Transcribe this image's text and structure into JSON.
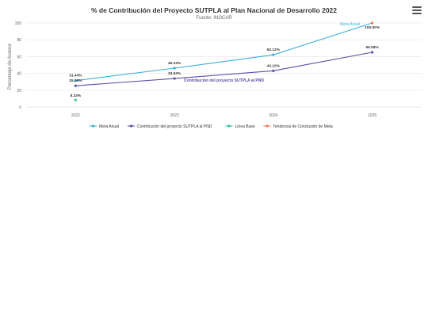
{
  "chart_data": {
    "type": "line",
    "title": "% de Contribución del Proyecto SUTPLA al Plan Nacional de Desarrollo 2022",
    "subtitle": "Fuente: INOCAR",
    "ylabel": "Porcentaje de Avance",
    "xlabel": "",
    "categories": [
      "2022",
      "2023",
      "2024",
      "2025"
    ],
    "ylim": [
      0,
      100
    ],
    "yticks": [
      0,
      20,
      40,
      60,
      80,
      100
    ],
    "grid": true,
    "legend_position": "bottom",
    "series": [
      {
        "name": "Meta Anual",
        "color": "#3aafd9",
        "values": [
          31.44,
          46.22,
          62.12,
          100
        ],
        "labels": [
          "31.44%",
          "46.22%",
          "62.12%",
          "100.00%"
        ],
        "series_label": "Meta Anual"
      },
      {
        "name": "Contribución del proyecto SUTPLA al PND",
        "color": "#5b4ea6",
        "values": [
          25.28,
          33.92,
          43.1,
          65.08
        ],
        "labels": [
          "25.28%",
          "33.92%",
          "43.10%",
          "65.08%"
        ],
        "series_label": "Contribución del proyecto SUTPLA al PND"
      },
      {
        "name": "Línea Base",
        "color": "#2ec4a0",
        "values": [
          8.33,
          null,
          null,
          null
        ],
        "labels": [
          "8.33%",
          null,
          null,
          null
        ]
      },
      {
        "name": "Tendencia de Conclusión de Meta",
        "color": "#f07850",
        "values": [
          null,
          null,
          null,
          100
        ],
        "labels": [
          null,
          null,
          null,
          null
        ]
      }
    ]
  },
  "menu": {
    "icon": "hamburger-menu-icon"
  }
}
